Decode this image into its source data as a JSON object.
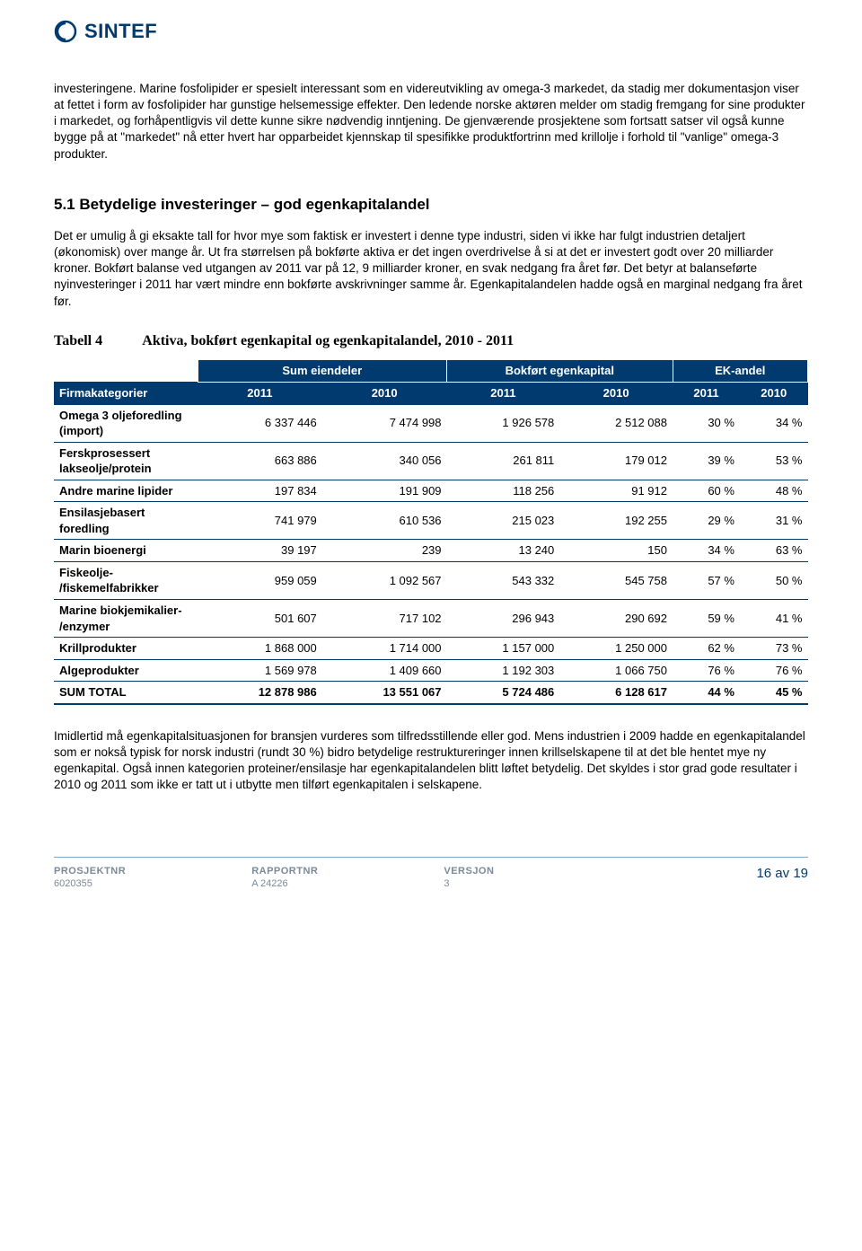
{
  "brand": {
    "name": "SINTEF",
    "logo_color": "#003a6f"
  },
  "paragraph1": "investeringene. Marine fosfolipider er spesielt interessant som en videreutvikling av omega-3 markedet, da stadig mer dokumentasjon viser at fettet i form av fosfolipider har gunstige helsemessige effekter. Den ledende norske aktøren melder om stadig fremgang for sine produkter i markedet, og forhåpentligvis vil dette kunne sikre nødvendig inntjening. De gjenværende prosjektene som fortsatt satser vil også kunne bygge på at \"markedet\" nå etter hvert har opparbeidet kjennskap til spesifikke produktfortrinn med krillolje i forhold til \"vanlige\" omega-3 produkter.",
  "section_heading": "5.1  Betydelige investeringer – god egenkapitalandel",
  "paragraph2": "Det er umulig å gi eksakte tall for hvor mye som faktisk er investert i denne type industri, siden vi ikke har fulgt industrien detaljert (økonomisk) over mange år.  Ut fra størrelsen på bokførte aktiva er det ingen overdrivelse å si at det er investert godt over 20 milliarder kroner. Bokført balanse ved utgangen av 2011 var på 12, 9 milliarder kroner, en svak nedgang fra året før.  Det betyr at balanseførte nyinvesteringer i 2011 har vært mindre enn bokførte avskrivninger samme år.  Egenkapitalandelen hadde også en marginal nedgang fra året før.",
  "table": {
    "caption_label": "Tabell 4",
    "caption_text": "Aktiva, bokført egenkapital og egenkapitalandel, 2010 - 2011",
    "group_headers": [
      "Sum eiendeler",
      "Bokført egenkapital",
      "EK-andel"
    ],
    "col_label": "Firmakategorier",
    "years": [
      "2011",
      "2010",
      "2011",
      "2010",
      "2011",
      "2010"
    ],
    "header_bg": "#003a6f",
    "header_fg": "#ffffff",
    "border_color": "#003a6f",
    "rows": [
      {
        "label": "Omega 3 oljeforedling (import)",
        "cells": [
          "6 337 446",
          "7 474 998",
          "1 926 578",
          "2 512 088",
          "30 %",
          "34 %"
        ]
      },
      {
        "label": "Ferskprosessert lakseolje/protein",
        "cells": [
          "663 886",
          "340 056",
          "261 811",
          "179 012",
          "39 %",
          "53 %"
        ]
      },
      {
        "label": "Andre marine lipider",
        "cells": [
          "197 834",
          "191 909",
          "118 256",
          "91 912",
          "60 %",
          "48 %"
        ]
      },
      {
        "label": "Ensilasjebasert foredling",
        "cells": [
          "741 979",
          "610 536",
          "215 023",
          "192 255",
          "29 %",
          "31 %"
        ]
      },
      {
        "label": "Marin bioenergi",
        "cells": [
          "39 197",
          "239",
          "13 240",
          "150",
          "34 %",
          "63 %"
        ]
      },
      {
        "label": "Fiskeolje- /fiskemelfabrikker",
        "cells": [
          "959 059",
          "1 092 567",
          "543 332",
          "545 758",
          "57 %",
          "50 %"
        ]
      },
      {
        "label": "Marine biokjemikalier- /enzymer",
        "cells": [
          "501 607",
          "717 102",
          "296 943",
          "290 692",
          "59 %",
          "41 %"
        ]
      },
      {
        "label": "Krillprodukter",
        "cells": [
          "1 868 000",
          "1 714 000",
          "1 157 000",
          "1 250 000",
          "62 %",
          "73 %"
        ]
      },
      {
        "label": "Algeprodukter",
        "cells": [
          "1 569 978",
          "1 409 660",
          "1 192 303",
          "1 066 750",
          "76 %",
          "76 %"
        ]
      },
      {
        "label": "SUM TOTAL",
        "cells": [
          "12 878 986",
          "13 551 067",
          "5 724 486",
          "6 128 617",
          "44 %",
          "45 %"
        ],
        "total": true
      }
    ]
  },
  "paragraph3": "Imidlertid må egenkapitalsituasjonen for bransjen vurderes som tilfredsstillende eller god.  Mens industrien i 2009 hadde en egenkapitalandel som er nokså typisk for norsk industri (rundt 30 %) bidro betydelige restruktureringer innen krillselskapene til at det ble hentet mye ny egenkapital. Også innen kategorien proteiner/ensilasje har egenkapitalandelen blitt løftet betydelig. Det skyldes i stor grad gode resultater i 2010 og 2011 som ikke er tatt ut i utbytte men tilført egenkapitalen i selskapene.",
  "footer": {
    "cols": [
      {
        "label": "PROSJEKTNR",
        "value": "6020355"
      },
      {
        "label": "RAPPORTNR",
        "value": "A 24226"
      },
      {
        "label": "VERSJON",
        "value": "3"
      }
    ],
    "page_current": "16",
    "page_sep": "av",
    "page_total": "19"
  }
}
